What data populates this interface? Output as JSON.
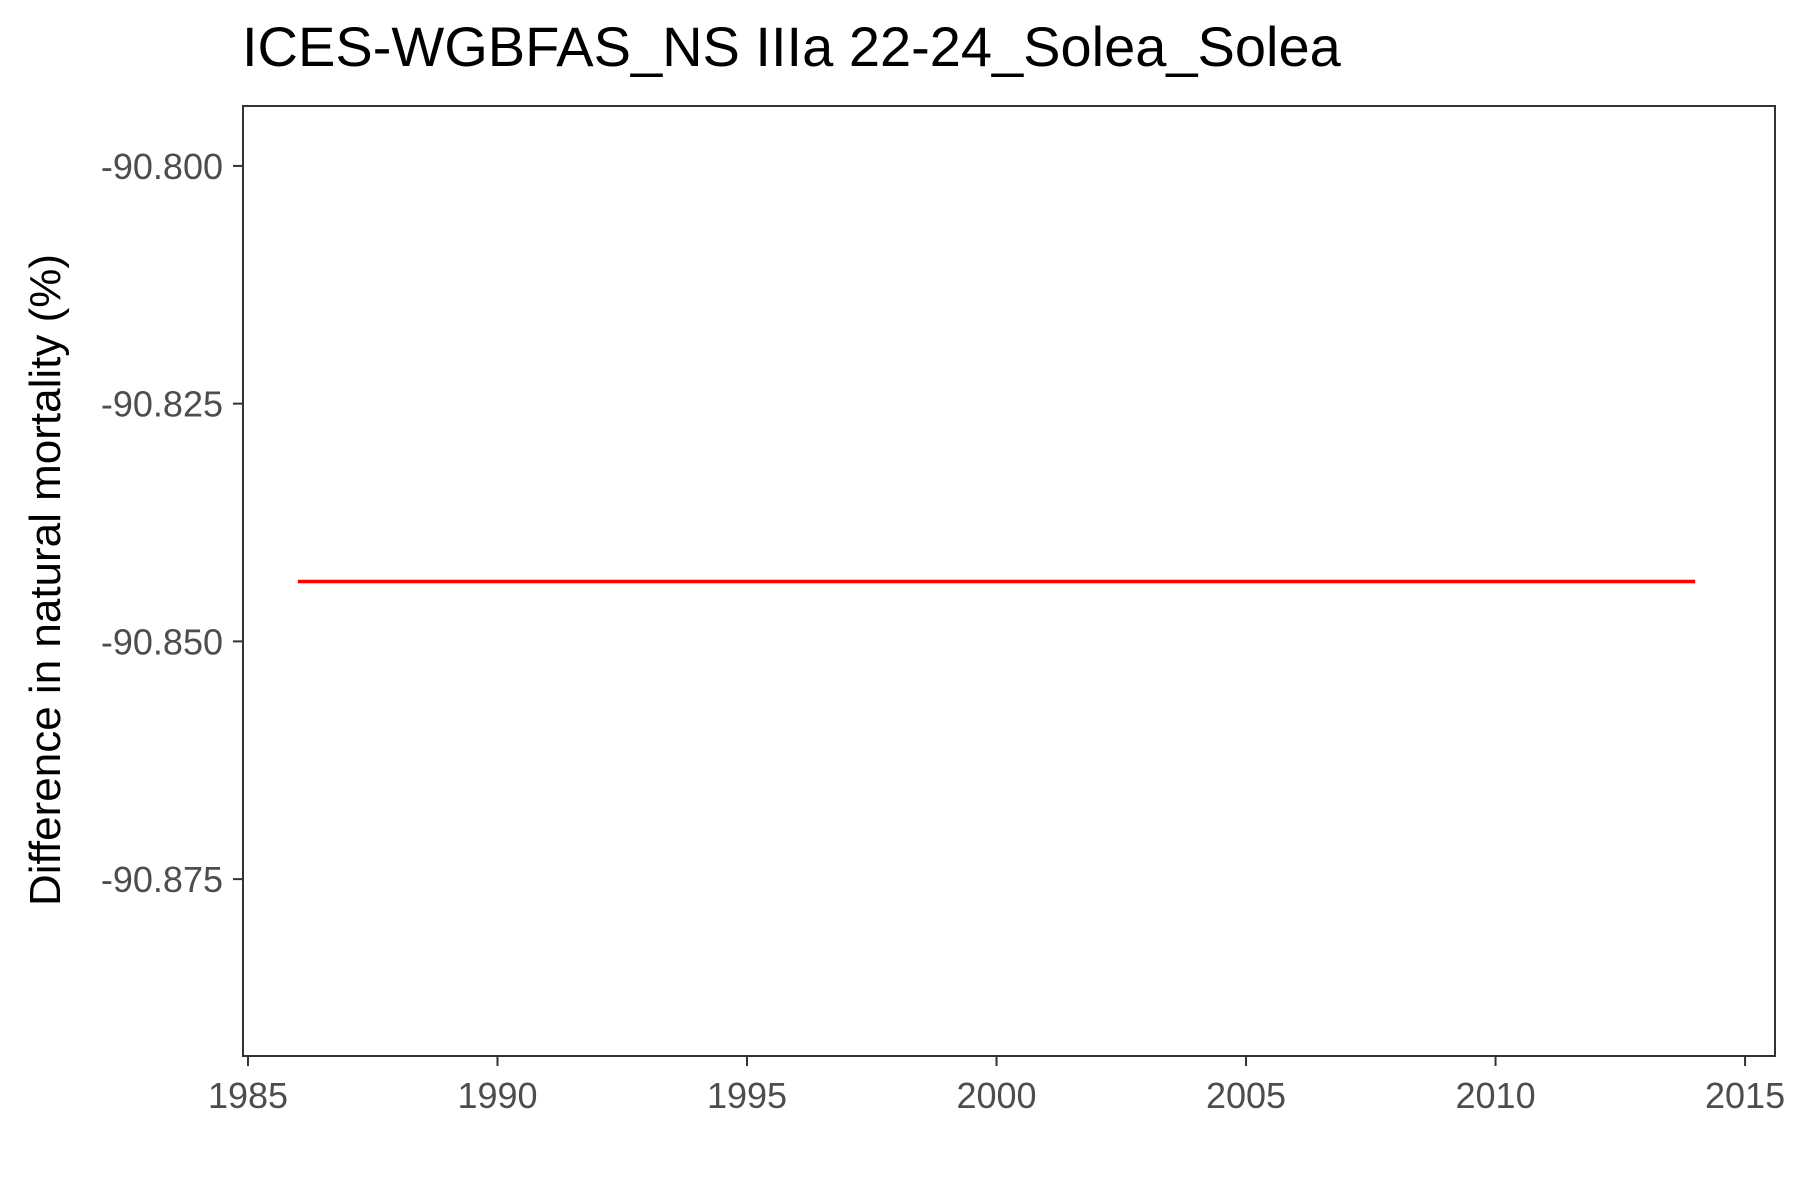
{
  "chart_data": {
    "type": "line",
    "title": "ICES-WGBFAS_NS IIIa 22-24_Solea_Solea",
    "xlabel": "",
    "ylabel": "Difference in natural mortality (%)",
    "x": [
      1986,
      1987,
      1988,
      1989,
      1990,
      1991,
      1992,
      1993,
      1994,
      1995,
      1996,
      1997,
      1998,
      1999,
      2000,
      2001,
      2002,
      2003,
      2004,
      2005,
      2006,
      2007,
      2008,
      2009,
      2010,
      2011,
      2012,
      2013,
      2014
    ],
    "series": [
      {
        "values": [
          -90.8437,
          -90.8437,
          -90.8437,
          -90.8437,
          -90.8437,
          -90.8437,
          -90.8437,
          -90.8437,
          -90.8437,
          -90.8437,
          -90.8437,
          -90.8437,
          -90.8437,
          -90.8437,
          -90.8437,
          -90.8437,
          -90.8437,
          -90.8437,
          -90.8437,
          -90.8437,
          -90.8437,
          -90.8437,
          -90.8437,
          -90.8437,
          -90.8437,
          -90.8437,
          -90.8437,
          -90.8437,
          -90.8437
        ],
        "color": "#ff0000"
      }
    ],
    "xlim": [
      1984.9,
      2015.6
    ],
    "ylim": [
      -90.8936,
      -90.7937
    ],
    "xticks": [
      1985,
      1990,
      1995,
      2000,
      2005,
      2010,
      2015
    ],
    "xtick_labels": [
      "1985",
      "1990",
      "1995",
      "2000",
      "2005",
      "2010",
      "2015"
    ],
    "yticks": [
      -90.8,
      -90.825,
      -90.85,
      -90.875
    ],
    "ytick_labels": [
      "-90.800",
      "-90.825",
      "-90.850",
      "-90.875"
    ],
    "grid": false,
    "legend": "none"
  }
}
